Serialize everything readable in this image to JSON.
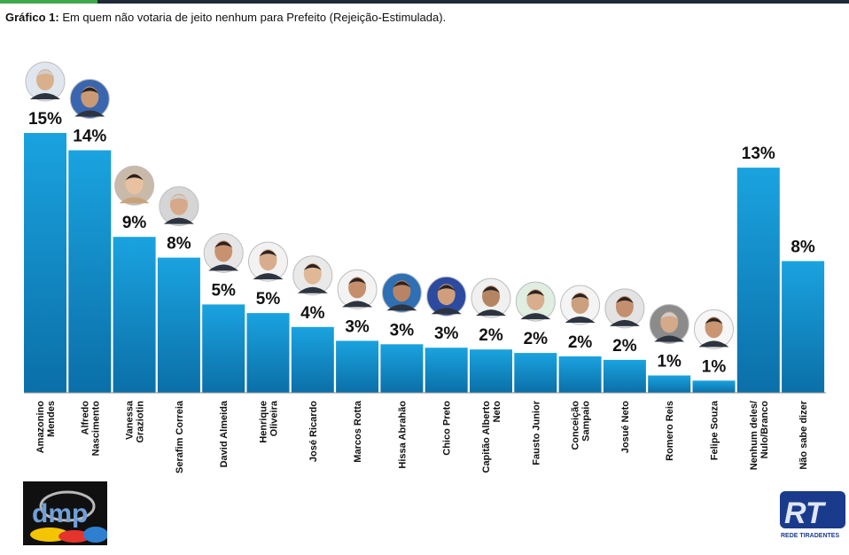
{
  "title": {
    "prefix": "Gráfico 1:",
    "text": "Em quem não votaria de jeito nenhum para Prefeito (Rejeição-Estimulada)."
  },
  "chart_data": {
    "type": "bar",
    "categories": [
      [
        "Amazonino",
        "Mendes"
      ],
      [
        "Alfredo",
        "Nascimento"
      ],
      [
        "Vanessa",
        "Graziotin"
      ],
      [
        "Serafim Correia"
      ],
      [
        "David Almeida"
      ],
      [
        "Henrique",
        "Oliveira"
      ],
      [
        "José Ricardo"
      ],
      [
        "Marcos Rotta"
      ],
      [
        "Hissa Abrahão"
      ],
      [
        "Chico Preto"
      ],
      [
        "Capitão Alberto",
        "Neto"
      ],
      [
        "Fausto Junior"
      ],
      [
        "Conceição",
        "Sampaio"
      ],
      [
        "Josué Neto"
      ],
      [
        "Romero Reis"
      ],
      [
        "Felipe Souza"
      ],
      [
        "Nenhum deles/",
        "Nulo/Branco"
      ],
      [
        "Não sabe dizer"
      ]
    ],
    "values": [
      15,
      14,
      9,
      8,
      5,
      5,
      4,
      3,
      3,
      3,
      2,
      2,
      2,
      2,
      1,
      1,
      13,
      8
    ],
    "data_labels": [
      "15%",
      "14%",
      "9%",
      "8%",
      "5%",
      "5%",
      "4%",
      "3%",
      "3%",
      "3%",
      "2%",
      "2%",
      "2%",
      "2%",
      "1%",
      "1%",
      "13%",
      "8%"
    ],
    "display_heights": [
      15.0,
      14.0,
      9.0,
      7.8,
      5.1,
      4.6,
      3.8,
      3.0,
      2.8,
      2.6,
      2.5,
      2.3,
      2.1,
      1.9,
      1.0,
      0.7,
      13.0,
      7.6
    ],
    "ylim": [
      0,
      16
    ],
    "grid": false,
    "legend": "none",
    "colors": {
      "bar_top": "#1aa3df",
      "bar_bottom": "#0b6fa8",
      "axis": "#8a8a8a"
    }
  },
  "logos": {
    "dmp": "dmp",
    "rt": "RT",
    "rt_caption": "REDE TIRADENTES"
  }
}
